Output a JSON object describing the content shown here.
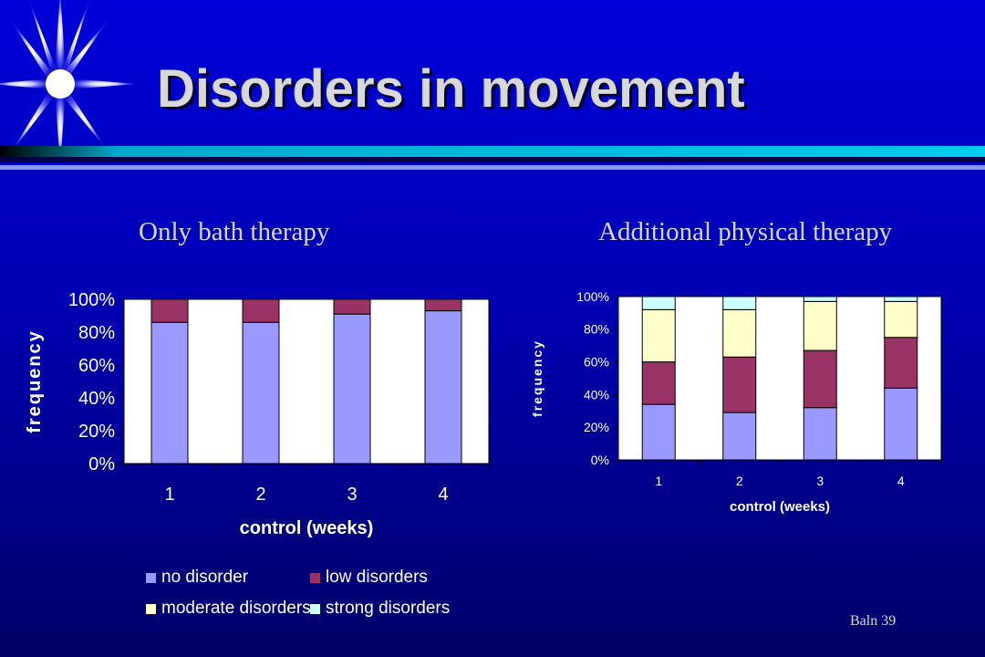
{
  "slide": {
    "title": "Disorders in movement",
    "subtitle_left": "Only bath therapy",
    "subtitle_right": "Additional physical therapy",
    "footer": "Baln 39"
  },
  "colors": {
    "no_disorder": "#9999ff",
    "low_disorders": "#993366",
    "moderate_disorders": "#ffffcc",
    "strong_disorders": "#ccffff",
    "plot_bg": "#ffffff"
  },
  "legend": {
    "items": [
      "no disorder",
      "low disorders",
      "moderate disorders",
      "strong disorders"
    ]
  },
  "chart_data": [
    {
      "type": "bar",
      "stacked": true,
      "categories": [
        "1",
        "2",
        "3",
        "4"
      ],
      "series": [
        {
          "name": "no disorder",
          "values": [
            86,
            86,
            91,
            93
          ]
        },
        {
          "name": "low disorders",
          "values": [
            14,
            14,
            9,
            7
          ]
        },
        {
          "name": "moderate disorders",
          "values": [
            0,
            0,
            0,
            0
          ]
        },
        {
          "name": "strong disorders",
          "values": [
            0,
            0,
            0,
            0
          ]
        }
      ],
      "xlabel": "control (weeks)",
      "ylabel": "frequency",
      "ylim": [
        0,
        100
      ],
      "yticks": [
        "0%",
        "20%",
        "40%",
        "60%",
        "80%",
        "100%"
      ],
      "grid": false,
      "legend": "bottom"
    },
    {
      "type": "bar",
      "stacked": true,
      "categories": [
        "1",
        "2",
        "3",
        "4"
      ],
      "series": [
        {
          "name": "no disorder",
          "values": [
            34,
            29,
            32,
            44
          ]
        },
        {
          "name": "low disorders",
          "values": [
            26,
            34,
            35,
            31
          ]
        },
        {
          "name": "moderate disorders",
          "values": [
            32,
            29,
            30,
            22
          ]
        },
        {
          "name": "strong disorders",
          "values": [
            8,
            8,
            3,
            3
          ]
        }
      ],
      "xlabel": "control (weeks)",
      "ylabel": "frequency",
      "ylim": [
        0,
        100
      ],
      "yticks": [
        "0%",
        "20%",
        "40%",
        "60%",
        "80%",
        "100%"
      ],
      "grid": false,
      "legend": "none"
    }
  ]
}
